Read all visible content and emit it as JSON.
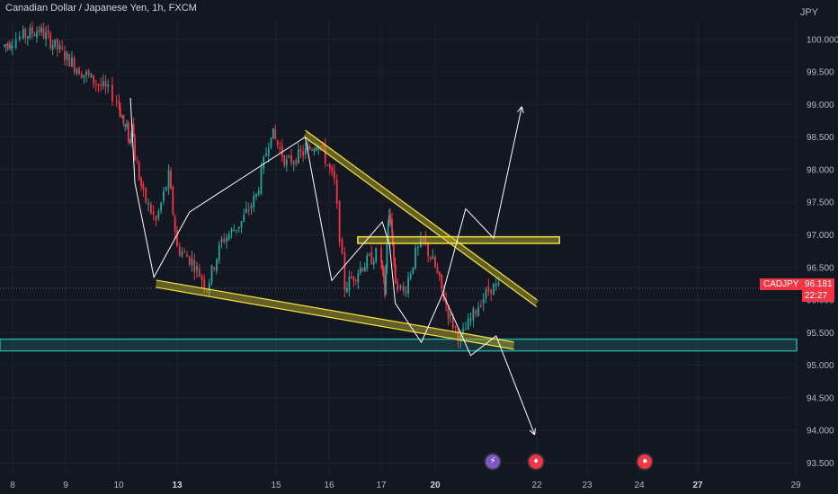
{
  "header": {
    "title": "Canadian Dollar / Japanese Yen, 1h, FXCM",
    "currency": "JPY"
  },
  "price_label": {
    "symbol": "CADJPY",
    "price": "96.181",
    "timer": "22:27"
  },
  "events": [
    {
      "name": "lightning-event-icon",
      "glyph": "⚡",
      "color": "#7e57c2",
      "x_day": 21.1
    },
    {
      "name": "canada-flag-event-icon",
      "glyph": "♦",
      "color": "#f23645",
      "x_day": 21.95
    },
    {
      "name": "japan-flag-event-icon",
      "glyph": "●",
      "color": "#f23645",
      "x_day": 24.2
    }
  ],
  "colors": {
    "bull": "#26a69a",
    "bear": "#f23645",
    "pattern_fill": "#c9b52a",
    "pattern_stroke": "#f0e442",
    "support_zone": "#26a69a",
    "projection": "#ffffff"
  },
  "chart_data": {
    "type": "candlestick",
    "ylim": [
      93.3,
      100.3
    ],
    "y_ticks": [
      "93.500",
      "94.000",
      "94.500",
      "95.000",
      "95.500",
      "96.000",
      "96.500",
      "97.000",
      "97.500",
      "98.000",
      "98.500",
      "99.000",
      "99.500",
      "100.000"
    ],
    "x_ticks": [
      {
        "label": "8",
        "day": 8,
        "bold": false
      },
      {
        "label": "9",
        "day": 9,
        "bold": false
      },
      {
        "label": "10",
        "day": 10,
        "bold": false
      },
      {
        "label": "13",
        "day": 13,
        "bold": true
      },
      {
        "label": "15",
        "day": 15,
        "bold": false
      },
      {
        "label": "16",
        "day": 16,
        "bold": false
      },
      {
        "label": "17",
        "day": 17,
        "bold": false
      },
      {
        "label": "20",
        "day": 20,
        "bold": true
      },
      {
        "label": "22",
        "day": 22,
        "bold": false
      },
      {
        "label": "23",
        "day": 23,
        "bold": false
      },
      {
        "label": "24",
        "day": 24,
        "bold": false
      },
      {
        "label": "27",
        "day": 27,
        "bold": true
      },
      {
        "label": "29",
        "day": 29,
        "bold": false
      }
    ],
    "current_price": 96.181,
    "price_path": [
      [
        7.65,
        99.9
      ],
      [
        8.2,
        100.05
      ],
      [
        8.5,
        100.15
      ],
      [
        8.8,
        99.9
      ],
      [
        9.3,
        99.5
      ],
      [
        9.8,
        99.2
      ],
      [
        10.2,
        98.9
      ],
      [
        10.6,
        98.7
      ],
      [
        11.0,
        98.6
      ],
      [
        11.4,
        98.4
      ],
      [
        11.7,
        98.8
      ],
      [
        12.0,
        98.2
      ],
      [
        12.2,
        97.6
      ],
      [
        12.5,
        97.2
      ],
      [
        12.8,
        97.9
      ],
      [
        13.0,
        96.8
      ],
      [
        13.3,
        96.6
      ],
      [
        13.6,
        96.2
      ],
      [
        13.9,
        96.9
      ],
      [
        14.3,
        97.2
      ],
      [
        14.6,
        97.6
      ],
      [
        14.9,
        98.6
      ],
      [
        15.2,
        98.1
      ],
      [
        15.6,
        98.3
      ],
      [
        15.8,
        98.45
      ],
      [
        16.1,
        97.8
      ],
      [
        16.3,
        96.2
      ],
      [
        16.6,
        96.5
      ],
      [
        16.9,
        96.7
      ],
      [
        17.2,
        96.4
      ],
      [
        17.5,
        96.1
      ],
      [
        17.8,
        96.9
      ],
      [
        18.1,
        97.3
      ],
      [
        18.4,
        97.2
      ],
      [
        18.6,
        96.9
      ],
      [
        18.9,
        96.4
      ],
      [
        19.2,
        96.1
      ],
      [
        19.5,
        96.7
      ],
      [
        19.7,
        96.9
      ],
      [
        20.0,
        96.5
      ],
      [
        20.3,
        95.7
      ],
      [
        20.5,
        95.4
      ],
      [
        20.7,
        95.7
      ],
      [
        20.9,
        96.0
      ],
      [
        21.1,
        96.2
      ],
      [
        21.3,
        96.18
      ]
    ],
    "annotations": {
      "triangle_upper": [
        [
          15.55,
          98.55
        ],
        [
          22.0,
          95.95
        ]
      ],
      "triangle_lower": [
        [
          12.5,
          96.25
        ],
        [
          21.55,
          95.3
        ]
      ],
      "resistance_box": {
        "x": [
          16.55,
          22.45
        ],
        "y": [
          96.87,
          96.97
        ]
      },
      "support_zone": {
        "y": [
          95.22,
          95.4
        ]
      },
      "zigzag": [
        [
          11.45,
          99.1
        ],
        [
          12.0,
          97.8
        ],
        [
          12.45,
          96.35
        ],
        [
          13.25,
          97.35
        ],
        [
          15.55,
          98.5
        ],
        [
          16.05,
          96.3
        ],
        [
          17.15,
          97.2
        ],
        [
          18.15,
          96.85
        ],
        [
          18.95,
          95.95
        ],
        [
          19.65,
          95.35
        ],
        [
          20.15,
          96.1
        ],
        [
          20.6,
          97.4
        ],
        [
          21.15,
          96.95
        ],
        [
          21.7,
          98.95
        ]
      ],
      "bearish_projection": [
        [
          20.15,
          96.1
        ],
        [
          20.7,
          95.15
        ],
        [
          21.2,
          95.45
        ],
        [
          21.95,
          93.95
        ]
      ]
    }
  }
}
